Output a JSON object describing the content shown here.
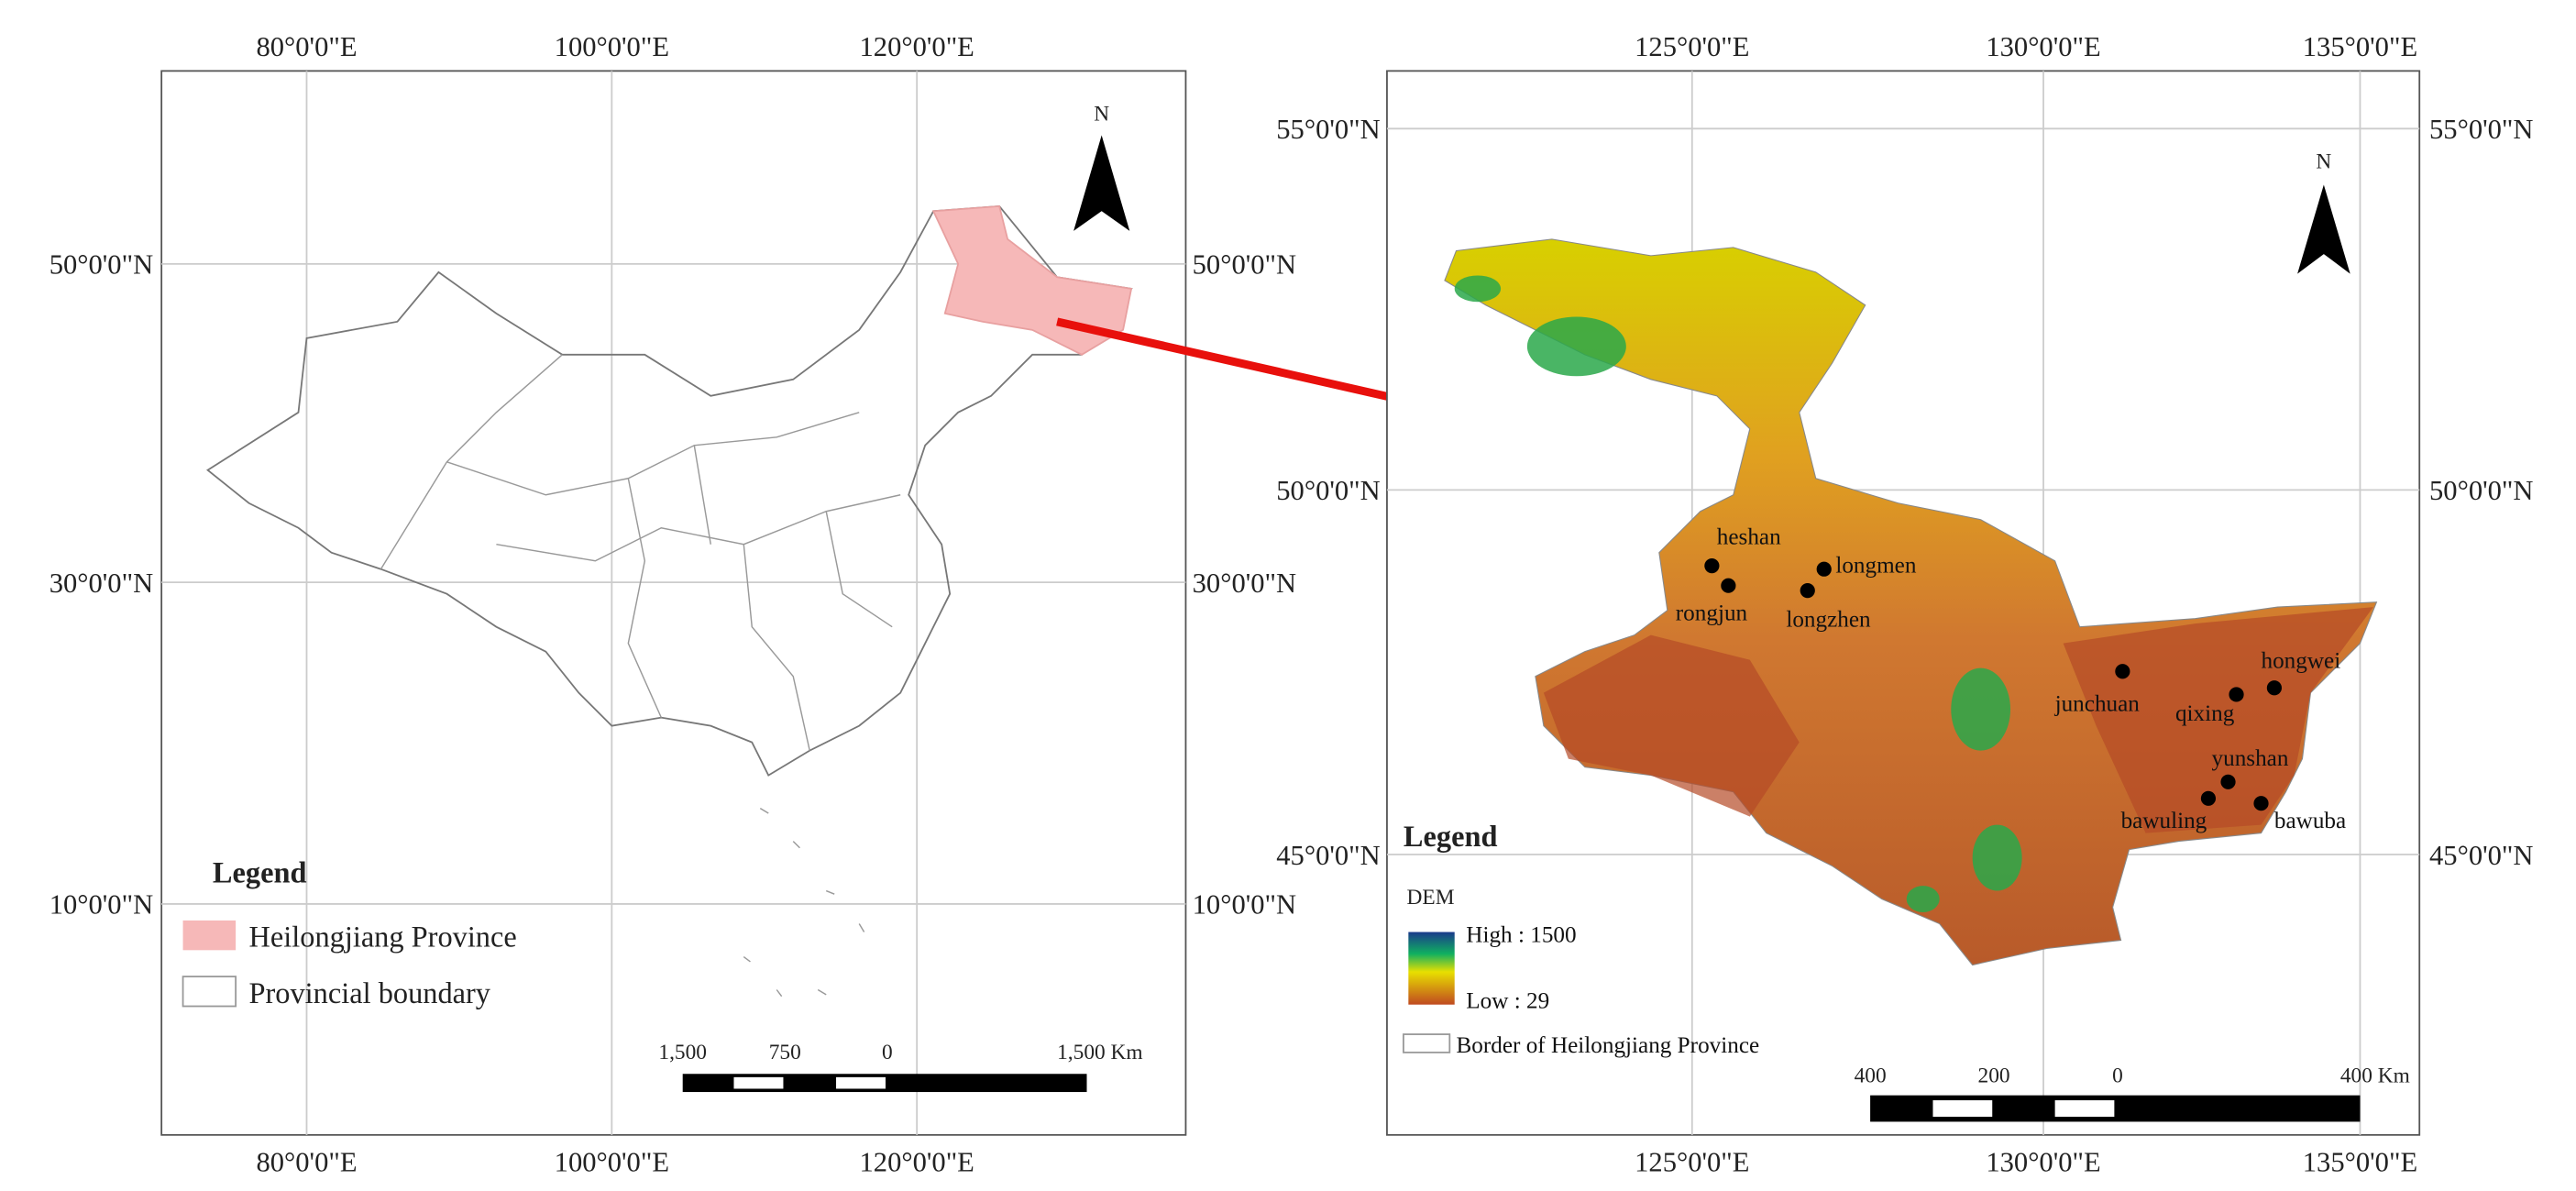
{
  "left_map": {
    "lon_top": [
      "80°0'0\"E",
      "100°0'0\"E",
      "120°0'0\"E"
    ],
    "lon_bottom": [
      "80°0'0\"E",
      "100°0'0\"E",
      "120°0'0\"E"
    ],
    "lat_left": [
      "50°0'0\"N",
      "30°0'0\"N",
      "10°0'0\"N"
    ],
    "lat_right": [
      "50°0'0\"N",
      "30°0'0\"N",
      "10°0'0\"N"
    ],
    "north": "N",
    "legend": {
      "title": "Legend",
      "items": [
        "Heilongjiang Province",
        "Provincial boundary"
      ]
    },
    "scale": [
      "1,500",
      "750",
      "0",
      "1,500 Km"
    ]
  },
  "right_map": {
    "lon_top": [
      "125°0'0\"E",
      "130°0'0\"E",
      "135°0'0\"E"
    ],
    "lon_bottom": [
      "125°0'0\"E",
      "130°0'0\"E",
      "135°0'0\"E"
    ],
    "lat_left": [
      "55°0'0\"N",
      "50°0'0\"N",
      "45°0'0\"N"
    ],
    "lat_right": [
      "55°0'0\"N",
      "50°0'0\"N",
      "45°0'0\"N"
    ],
    "north": "N",
    "stations": [
      "heshan",
      "rongjun",
      "longmen",
      "longzhen",
      "junchuan",
      "qixing",
      "hongwei",
      "yunshan",
      "bawuling",
      "bawuba"
    ],
    "legend": {
      "title": "Legend",
      "dem": "DEM",
      "high": "High : 1500",
      "low": "Low : 29",
      "border": "Border of Heilongjiang Province"
    },
    "scale": [
      "400",
      "200",
      "0",
      "400 Km"
    ]
  }
}
